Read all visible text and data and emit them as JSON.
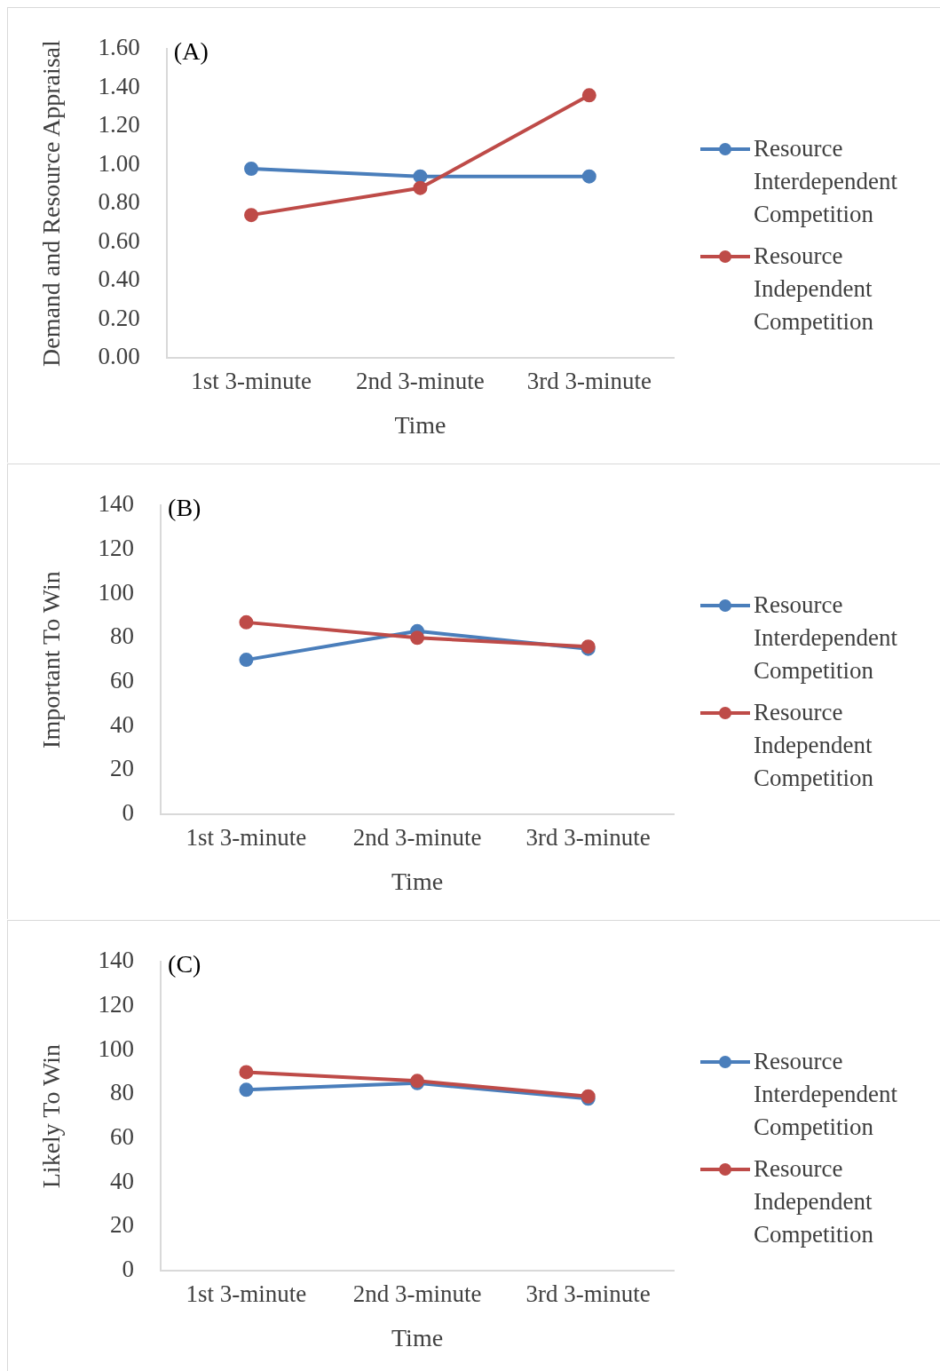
{
  "chart_data": [
    {
      "type": "line",
      "xlabel": "Time",
      "ylabel": "Demand and Resource Appraisal",
      "annotations": [
        "(A)"
      ],
      "categories": [
        "1st 3-minute",
        "2nd 3-minute",
        "3rd 3-minute"
      ],
      "series": [
        {
          "name": "Resource Interdependent Competition",
          "color": "#4a7ebb",
          "values": [
            0.98,
            0.94,
            0.94
          ]
        },
        {
          "name": "Resource Independent Competition",
          "color": "#be4b48",
          "values": [
            0.74,
            0.88,
            1.36
          ]
        }
      ],
      "ylim": [
        0,
        1.6
      ],
      "yticks": [
        {
          "value": 0,
          "label": "0.00"
        },
        {
          "value": 0.2,
          "label": "0.20"
        },
        {
          "value": 0.4,
          "label": "0.40"
        },
        {
          "value": 0.6,
          "label": "0.60"
        },
        {
          "value": 0.8,
          "label": "0.80"
        },
        {
          "value": 1,
          "label": "1.00"
        },
        {
          "value": 1.2,
          "label": "1.20"
        },
        {
          "value": 1.4,
          "label": "1.40"
        },
        {
          "value": 1.6,
          "label": "1.60"
        }
      ],
      "grid": false,
      "legend": "right",
      "marker": "circle",
      "line_style": "solid"
    },
    {
      "type": "line",
      "xlabel": "Time",
      "ylabel": "Important To Win",
      "annotations": [
        "(B)"
      ],
      "categories": [
        "1st 3-minute",
        "2nd 3-minute",
        "3rd 3-minute"
      ],
      "series": [
        {
          "name": "Resource Interdependent Competition",
          "color": "#4a7ebb",
          "values": [
            70,
            83,
            75
          ]
        },
        {
          "name": "Resource Independent Competition",
          "color": "#be4b48",
          "values": [
            87,
            80,
            76
          ]
        }
      ],
      "ylim": [
        0,
        140
      ],
      "yticks": [
        0,
        20,
        40,
        60,
        80,
        100,
        120,
        140
      ],
      "grid": false,
      "legend": "right",
      "marker": "circle",
      "line_style": "solid"
    },
    {
      "type": "line",
      "xlabel": "Time",
      "ylabel": "Likely To Win",
      "annotations": [
        "(C)"
      ],
      "categories": [
        "1st 3-minute",
        "2nd 3-minute",
        "3rd 3-minute"
      ],
      "series": [
        {
          "name": "Resource Interdependent Competition",
          "color": "#4a7ebb",
          "values": [
            82,
            85,
            78
          ]
        },
        {
          "name": "Resource Independent Competition",
          "color": "#be4b48",
          "values": [
            90,
            86,
            79
          ]
        }
      ],
      "ylim": [
        0,
        140
      ],
      "yticks": [
        0,
        20,
        40,
        60,
        80,
        100,
        120,
        140
      ],
      "grid": false,
      "legend": "right",
      "marker": "circle",
      "line_style": "solid"
    }
  ]
}
